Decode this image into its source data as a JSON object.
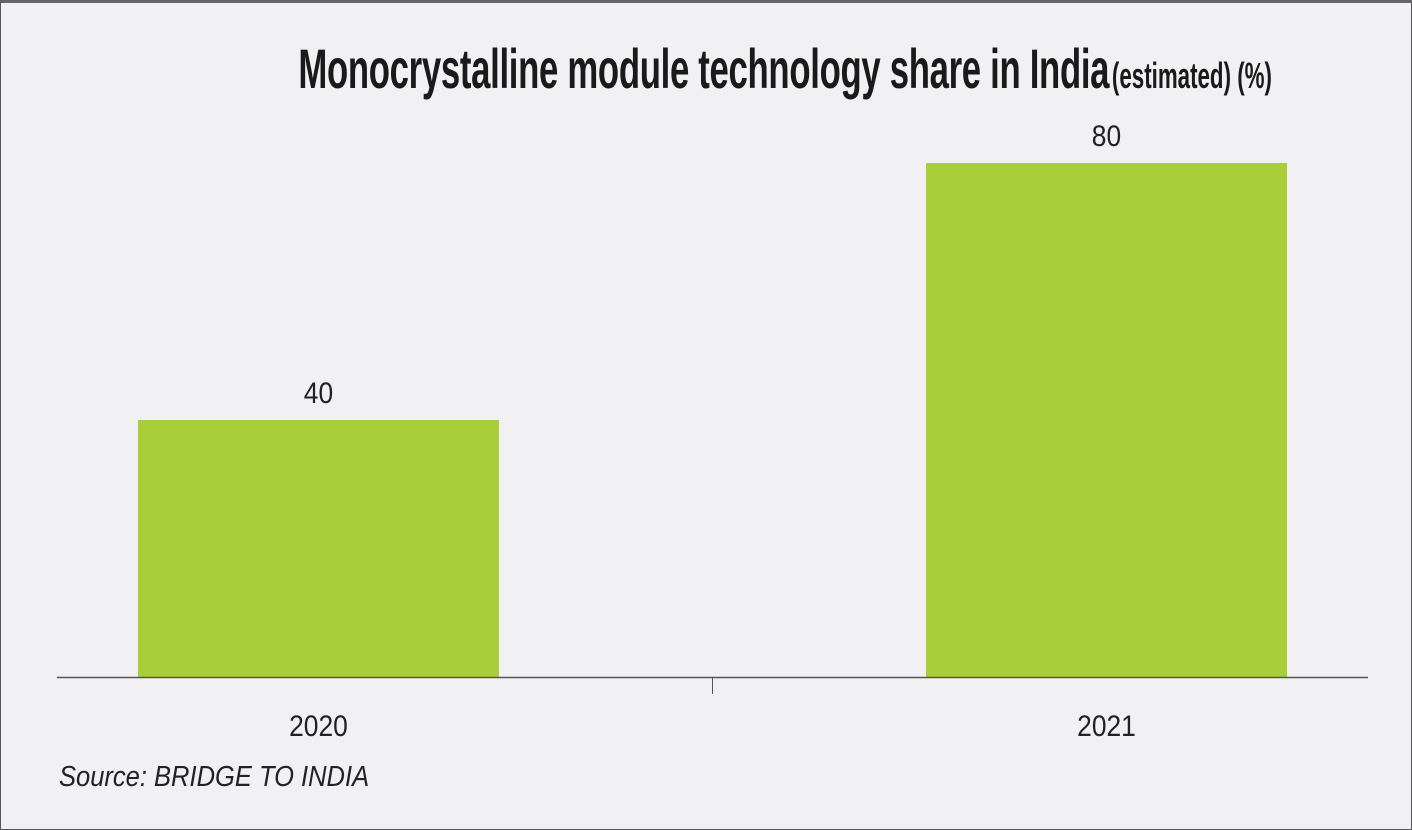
{
  "chart_data": {
    "type": "bar",
    "title": "Monocrystalline module technology share in India",
    "title_suffix": "(estimated) (%)",
    "categories": [
      "2020",
      "2021"
    ],
    "values": [
      40,
      80
    ],
    "xlabel": "",
    "ylabel": "",
    "ylim": [
      0,
      80
    ],
    "grid": false,
    "bar_color": "#a8cf3a",
    "source": "Source: BRIDGE TO INDIA"
  }
}
